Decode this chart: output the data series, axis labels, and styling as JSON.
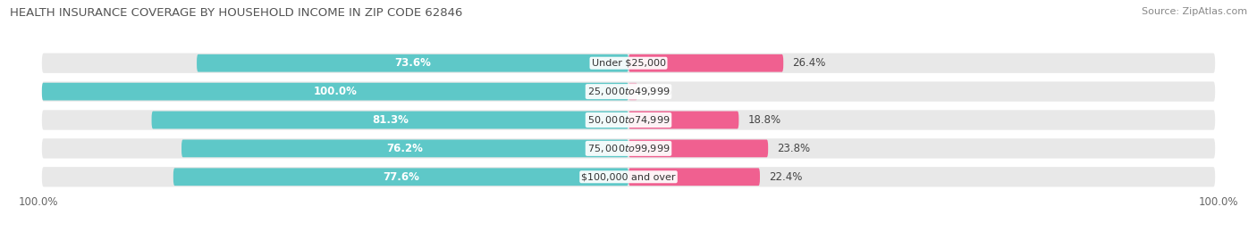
{
  "title": "HEALTH INSURANCE COVERAGE BY HOUSEHOLD INCOME IN ZIP CODE 62846",
  "source": "Source: ZipAtlas.com",
  "categories": [
    "Under $25,000",
    "$25,000 to $49,999",
    "$50,000 to $74,999",
    "$75,000 to $99,999",
    "$100,000 and over"
  ],
  "with_coverage": [
    73.6,
    100.0,
    81.3,
    76.2,
    77.6
  ],
  "without_coverage": [
    26.4,
    0.0,
    18.8,
    23.8,
    22.4
  ],
  "color_with": "#5ec8c8",
  "color_without_main": "#f06090",
  "color_without_light": "#f0b8cc",
  "color_bg_bar": "#e8e8e8",
  "color_bg_fig": "#ffffff",
  "bar_height": 0.62,
  "label_fontsize": 8.5,
  "title_fontsize": 9.5,
  "source_fontsize": 8
}
